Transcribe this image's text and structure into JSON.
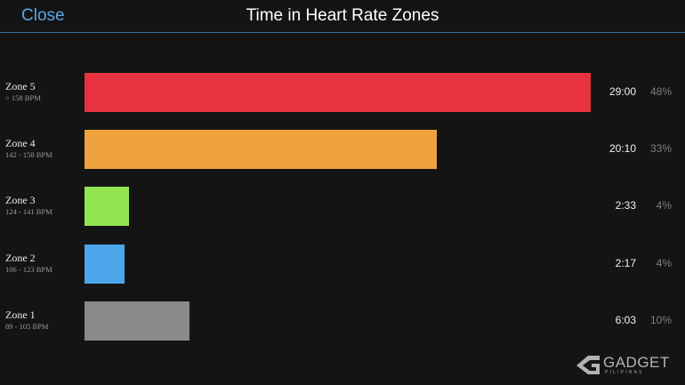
{
  "header": {
    "close_label": "Close",
    "title": "Time in Heart Rate Zones",
    "accent_color": "#5aa6e6"
  },
  "zones": [
    {
      "label": "Zone 5",
      "range": "> 158 BPM",
      "time": "29:00",
      "percent": "48%",
      "color": "#e8323f",
      "fraction": 1.0
    },
    {
      "label": "Zone 4",
      "range": "142 - 158 BPM",
      "time": "20:10",
      "percent": "33%",
      "color": "#f0a23e",
      "fraction": 0.696
    },
    {
      "label": "Zone 3",
      "range": "124 - 141 BPM",
      "time": "2:33",
      "percent": "4%",
      "color": "#93e451",
      "fraction": 0.088
    },
    {
      "label": "Zone 2",
      "range": "106 - 123 BPM",
      "time": "2:17",
      "percent": "4%",
      "color": "#4ea6ea",
      "fraction": 0.079
    },
    {
      "label": "Zone 1",
      "range": "89 - 105 BPM",
      "time": "6:03",
      "percent": "10%",
      "color": "#8a8a8a",
      "fraction": 0.208
    }
  ],
  "watermark": {
    "text": "GADGET",
    "subtext": "PILIPINAS"
  }
}
